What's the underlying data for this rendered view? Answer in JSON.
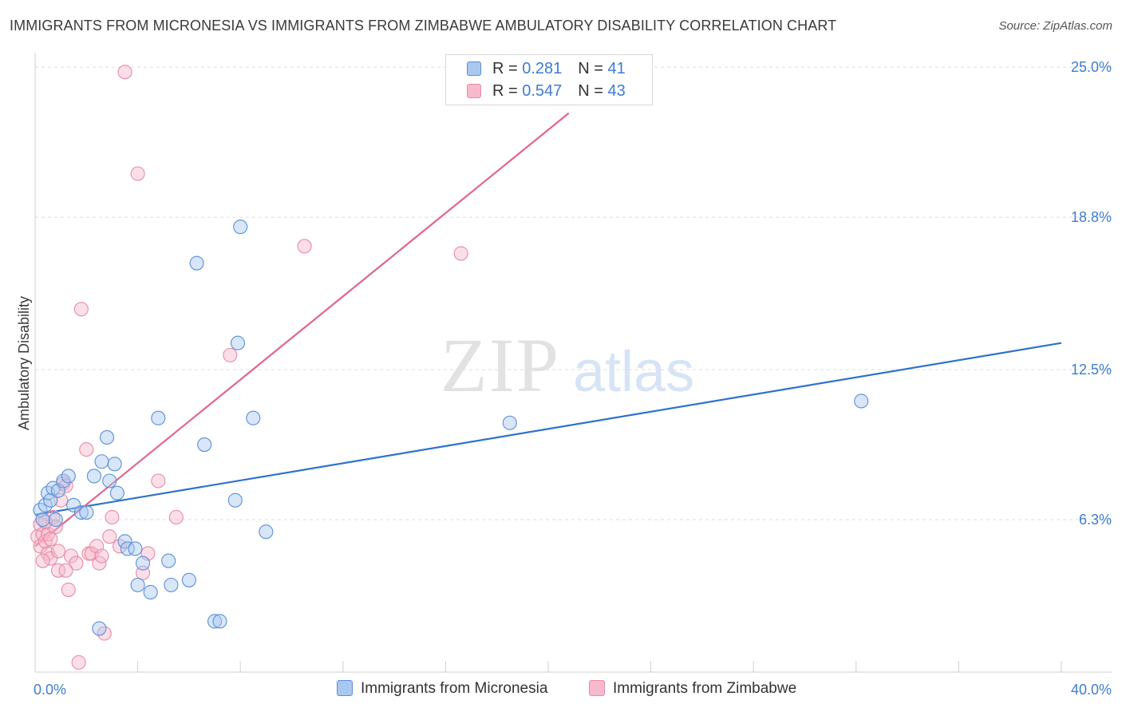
{
  "title": "IMMIGRANTS FROM MICRONESIA VS IMMIGRANTS FROM ZIMBABWE AMBULATORY DISABILITY CORRELATION CHART",
  "source": "Source: ZipAtlas.com",
  "watermark": {
    "zip": "ZIP",
    "atlas": "atlas"
  },
  "legend": {
    "r_label": "R =",
    "n_label": "N =",
    "rows": [
      {
        "r": "0.281",
        "n": "41"
      },
      {
        "r": "0.547",
        "n": "43"
      }
    ]
  },
  "colors": {
    "micronesia_fill": "#a9c8f0",
    "micronesia_stroke": "#5b8fd6",
    "micronesia_line": "#2f72c9",
    "zimbabwe_fill": "#f7b9cc",
    "zimbabwe_stroke": "#e88aa6",
    "zimbabwe_line": "#e2648f",
    "tick_label": "#3f7cd0"
  },
  "chart_data": {
    "type": "scatter",
    "ylabel": "Ambulatory Disability",
    "x_tick_labels": [
      "0.0%",
      "40.0%"
    ],
    "y_tick_labels": [
      "25.0%",
      "18.8%",
      "12.5%",
      "6.3%"
    ],
    "y_ticks": [
      25.0,
      18.8,
      12.5,
      6.3
    ],
    "xlim": [
      0,
      40
    ],
    "ylim": [
      0,
      25.4
    ],
    "grid": "horizontal dashed",
    "legend_position": "top-center",
    "series": [
      {
        "name": "Immigrants from Micronesia",
        "points": [
          [
            0.2,
            6.7
          ],
          [
            0.3,
            6.3
          ],
          [
            0.4,
            6.9
          ],
          [
            0.5,
            7.4
          ],
          [
            0.6,
            7.1
          ],
          [
            0.7,
            7.6
          ],
          [
            0.8,
            6.3
          ],
          [
            0.9,
            7.5
          ],
          [
            1.1,
            7.9
          ],
          [
            1.3,
            8.1
          ],
          [
            1.5,
            6.9
          ],
          [
            1.8,
            6.6
          ],
          [
            2.0,
            6.6
          ],
          [
            2.3,
            8.1
          ],
          [
            2.6,
            8.7
          ],
          [
            2.8,
            9.7
          ],
          [
            2.9,
            7.9
          ],
          [
            3.1,
            8.6
          ],
          [
            3.2,
            7.4
          ],
          [
            3.5,
            5.4
          ],
          [
            3.6,
            5.1
          ],
          [
            3.9,
            5.1
          ],
          [
            4.0,
            3.6
          ],
          [
            4.2,
            4.5
          ],
          [
            4.5,
            3.3
          ],
          [
            4.8,
            10.5
          ],
          [
            5.2,
            4.6
          ],
          [
            5.3,
            3.6
          ],
          [
            6.0,
            3.8
          ],
          [
            6.3,
            16.9
          ],
          [
            6.6,
            9.4
          ],
          [
            7.0,
            2.1
          ],
          [
            7.2,
            2.1
          ],
          [
            7.8,
            7.1
          ],
          [
            7.9,
            13.6
          ],
          [
            8.0,
            18.4
          ],
          [
            8.5,
            10.5
          ],
          [
            9.0,
            5.8
          ],
          [
            18.5,
            10.3
          ],
          [
            32.2,
            11.2
          ],
          [
            2.5,
            1.8
          ]
        ],
        "trend": {
          "x": [
            0,
            40
          ],
          "y": [
            6.5,
            13.6
          ]
        }
      },
      {
        "name": "Immigrants from Zimbabwe",
        "points": [
          [
            0.1,
            5.6
          ],
          [
            0.2,
            5.2
          ],
          [
            0.2,
            6.1
          ],
          [
            0.3,
            5.7
          ],
          [
            0.4,
            5.4
          ],
          [
            0.5,
            4.9
          ],
          [
            0.5,
            5.7
          ],
          [
            0.6,
            4.7
          ],
          [
            0.7,
            6.4
          ],
          [
            0.8,
            6.0
          ],
          [
            0.9,
            5.0
          ],
          [
            0.9,
            4.2
          ],
          [
            1.0,
            7.1
          ],
          [
            1.1,
            7.8
          ],
          [
            1.2,
            7.7
          ],
          [
            1.3,
            3.4
          ],
          [
            1.4,
            4.8
          ],
          [
            1.6,
            4.5
          ],
          [
            1.7,
            0.4
          ],
          [
            1.8,
            15.0
          ],
          [
            2.0,
            9.2
          ],
          [
            2.1,
            4.9
          ],
          [
            2.2,
            4.9
          ],
          [
            2.4,
            5.2
          ],
          [
            2.5,
            4.5
          ],
          [
            2.6,
            4.8
          ],
          [
            2.7,
            1.6
          ],
          [
            2.9,
            5.6
          ],
          [
            3.0,
            6.4
          ],
          [
            3.3,
            5.2
          ],
          [
            3.5,
            24.8
          ],
          [
            4.0,
            20.6
          ],
          [
            4.2,
            4.1
          ],
          [
            4.4,
            4.9
          ],
          [
            4.8,
            7.9
          ],
          [
            5.5,
            6.4
          ],
          [
            7.6,
            13.1
          ],
          [
            10.5,
            17.6
          ],
          [
            16.6,
            17.3
          ],
          [
            0.4,
            6.2
          ],
          [
            0.6,
            5.5
          ],
          [
            1.2,
            4.2
          ],
          [
            0.3,
            4.6
          ]
        ],
        "trend": {
          "x": [
            0,
            20.8
          ],
          "y": [
            5.2,
            23.1
          ]
        }
      }
    ]
  }
}
